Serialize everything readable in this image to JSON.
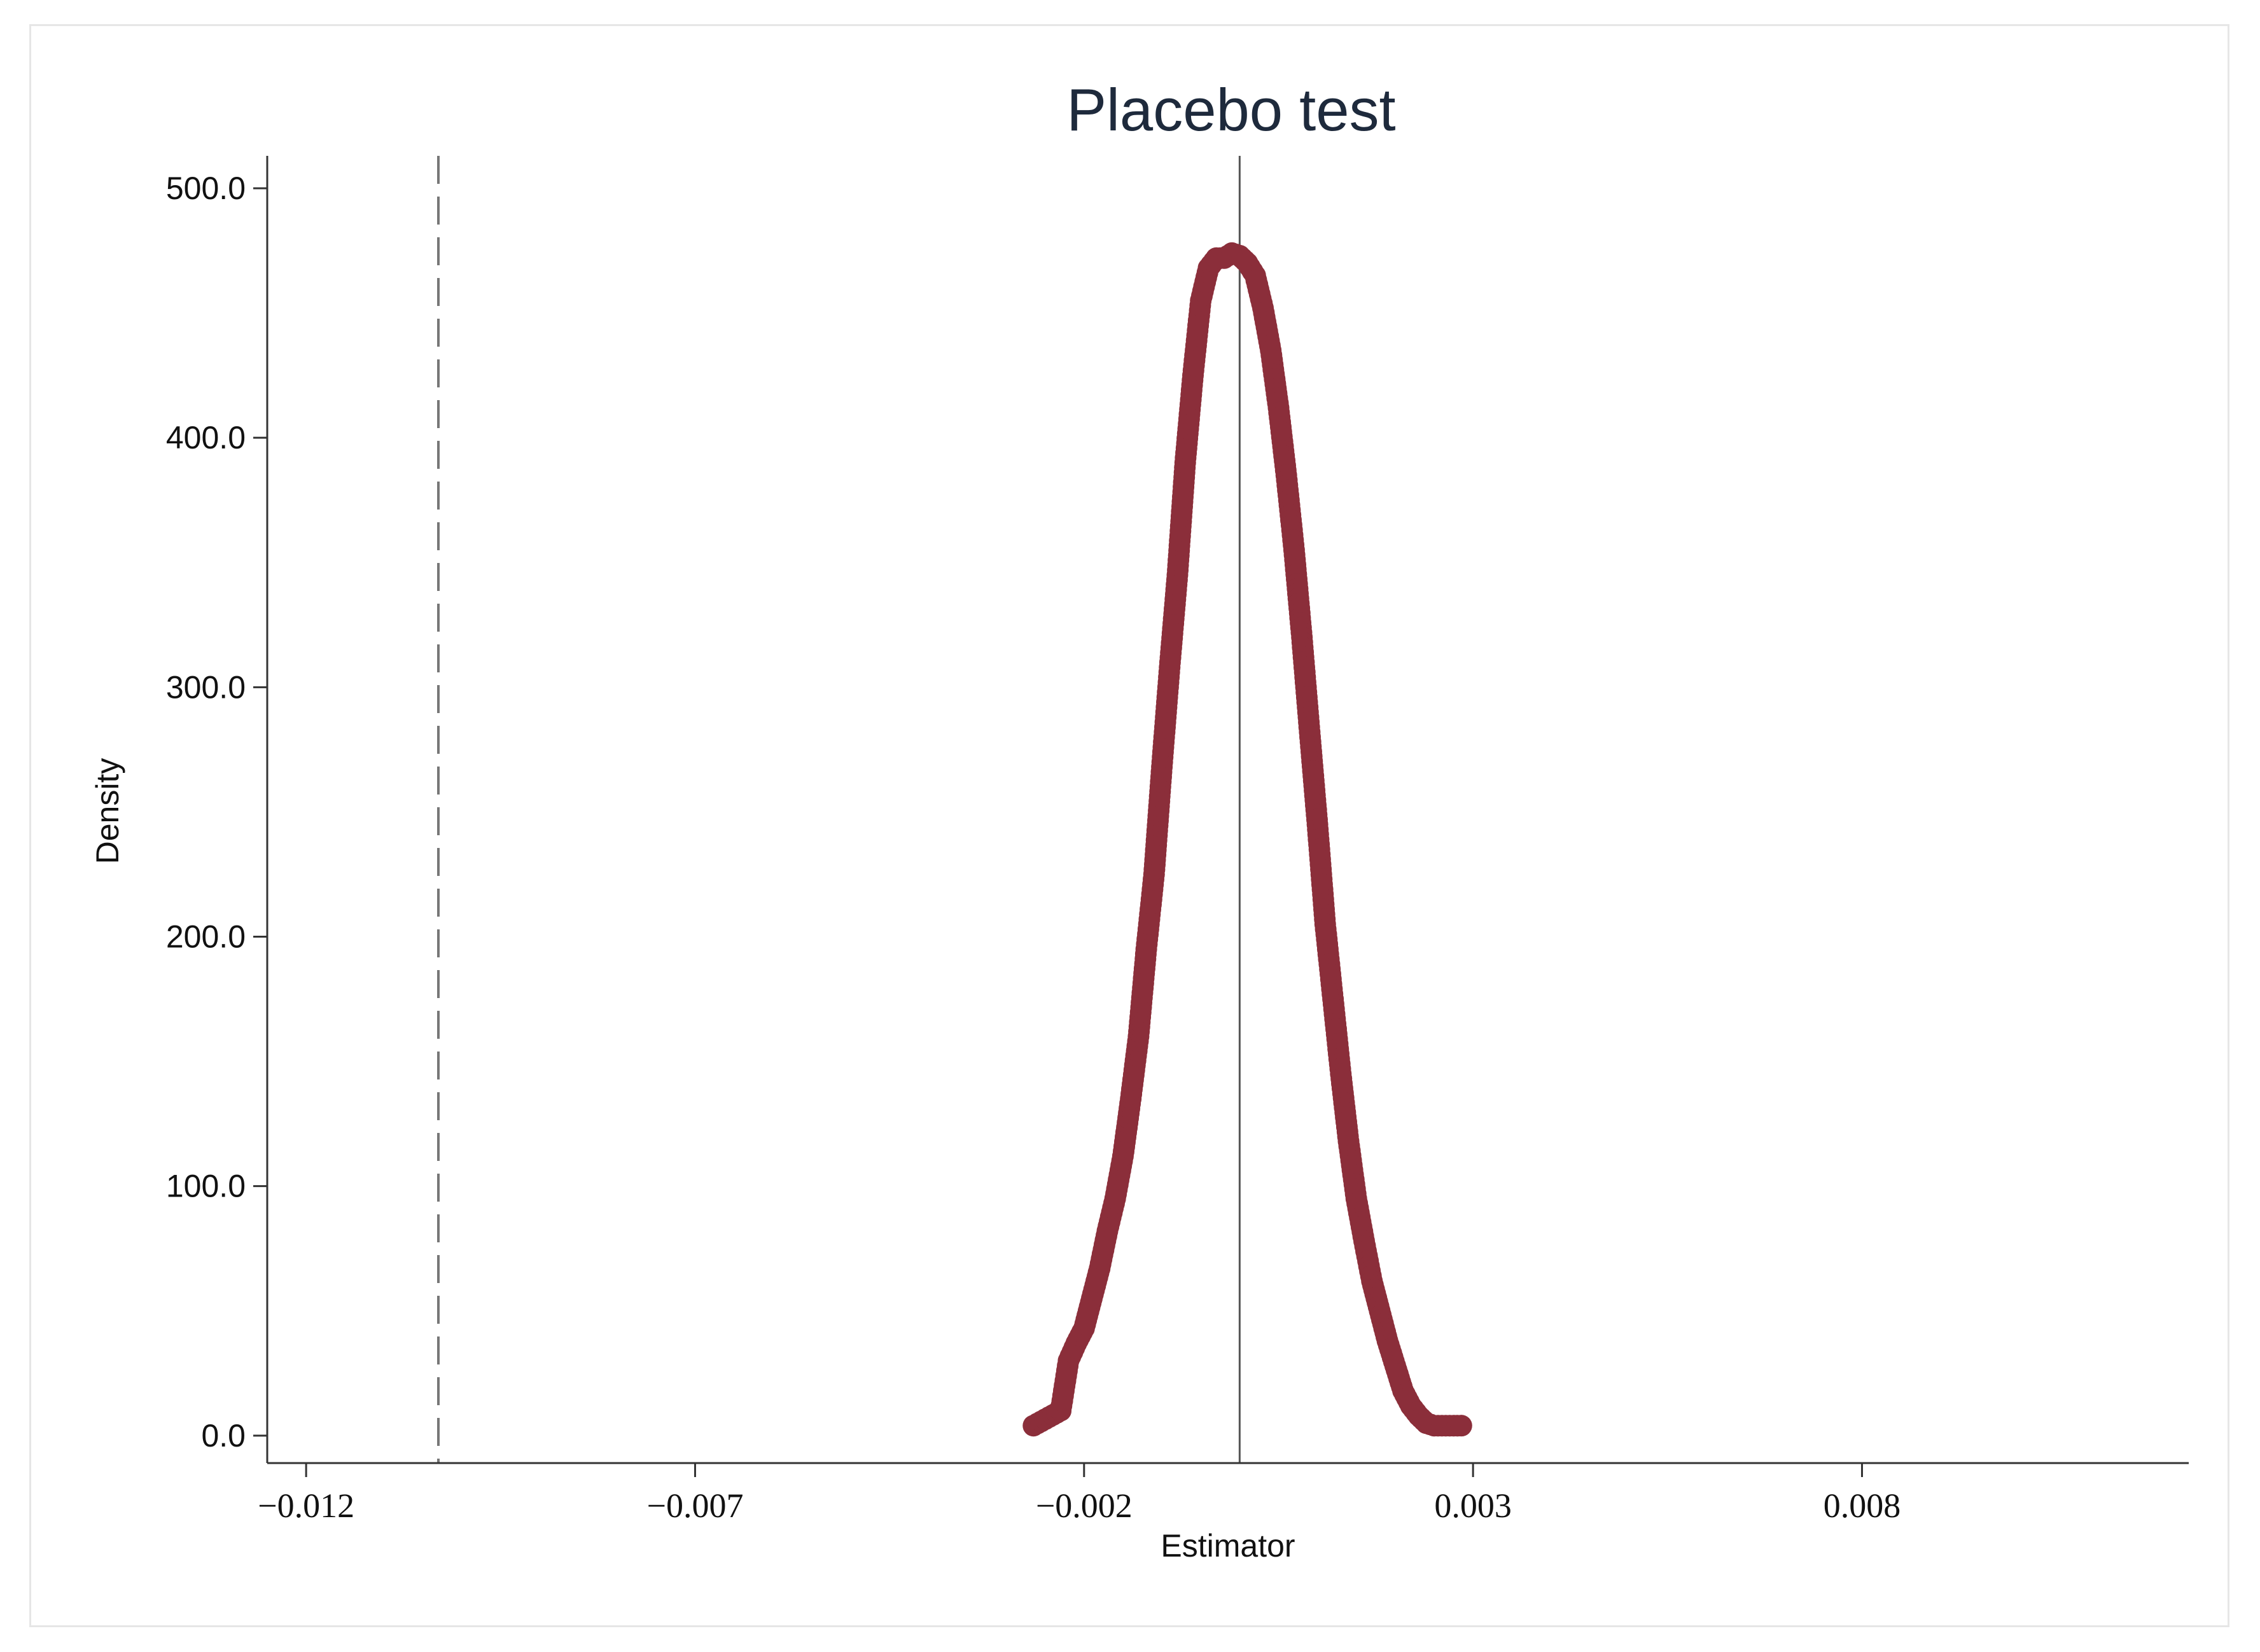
{
  "chart_data": {
    "type": "scatter",
    "title": "Placebo test",
    "xlabel": "Estimator",
    "ylabel": "Density",
    "xlim": [
      -0.0125,
      0.0122
    ],
    "ylim": [
      -11,
      513
    ],
    "x_ticks": [
      -0.012,
      -0.007,
      -0.002,
      0.003,
      0.008
    ],
    "x_tick_labels": [
      "−0.012",
      "−0.007",
      "−0.002",
      "0.003",
      "0.008"
    ],
    "y_ticks": [
      0,
      100,
      200,
      300,
      400,
      500
    ],
    "y_tick_labels": [
      "0.0",
      "100.0",
      "200.0",
      "300.0",
      "400.0",
      "500.0"
    ],
    "reference_lines": [
      {
        "x": -0.0103,
        "style": "dashed",
        "color": "#777777"
      },
      {
        "x": 0.0,
        "style": "solid",
        "color": "#555555"
      }
    ],
    "series": [
      {
        "marker_color": "#8b2e3a",
        "line_color": "#2a3950",
        "x": [
          -0.00265,
          -0.0023,
          -0.0022,
          -0.0021,
          -0.002,
          -0.0019,
          -0.0018,
          -0.0017,
          -0.0016,
          -0.0015,
          -0.0014,
          -0.0013,
          -0.0012,
          -0.0011,
          -0.001,
          -0.0009,
          -0.0008,
          -0.0007,
          -0.0006,
          -0.0005,
          -0.0004,
          -0.0003,
          -0.0002,
          -0.0001,
          0.0,
          0.0001,
          0.0002,
          0.0003,
          0.0004,
          0.0005,
          0.0006,
          0.0007,
          0.0008,
          0.0009,
          0.001,
          0.0011,
          0.0012,
          0.0013,
          0.0014,
          0.0015,
          0.0016,
          0.0017,
          0.0018,
          0.0019,
          0.002,
          0.0021,
          0.0022,
          0.0023,
          0.0024,
          0.0025,
          0.0026,
          0.0027,
          0.00285
        ],
        "y": [
          4,
          10,
          30,
          37,
          43,
          55,
          67,
          82,
          95,
          112,
          135,
          160,
          195,
          225,
          268,
          308,
          345,
          390,
          425,
          455,
          468,
          472,
          472,
          474,
          473,
          470,
          465,
          452,
          435,
          412,
          385,
          355,
          320,
          282,
          245,
          205,
          175,
          145,
          118,
          95,
          78,
          62,
          50,
          38,
          28,
          18,
          12,
          8,
          5,
          4,
          4,
          4,
          4
        ]
      }
    ]
  }
}
